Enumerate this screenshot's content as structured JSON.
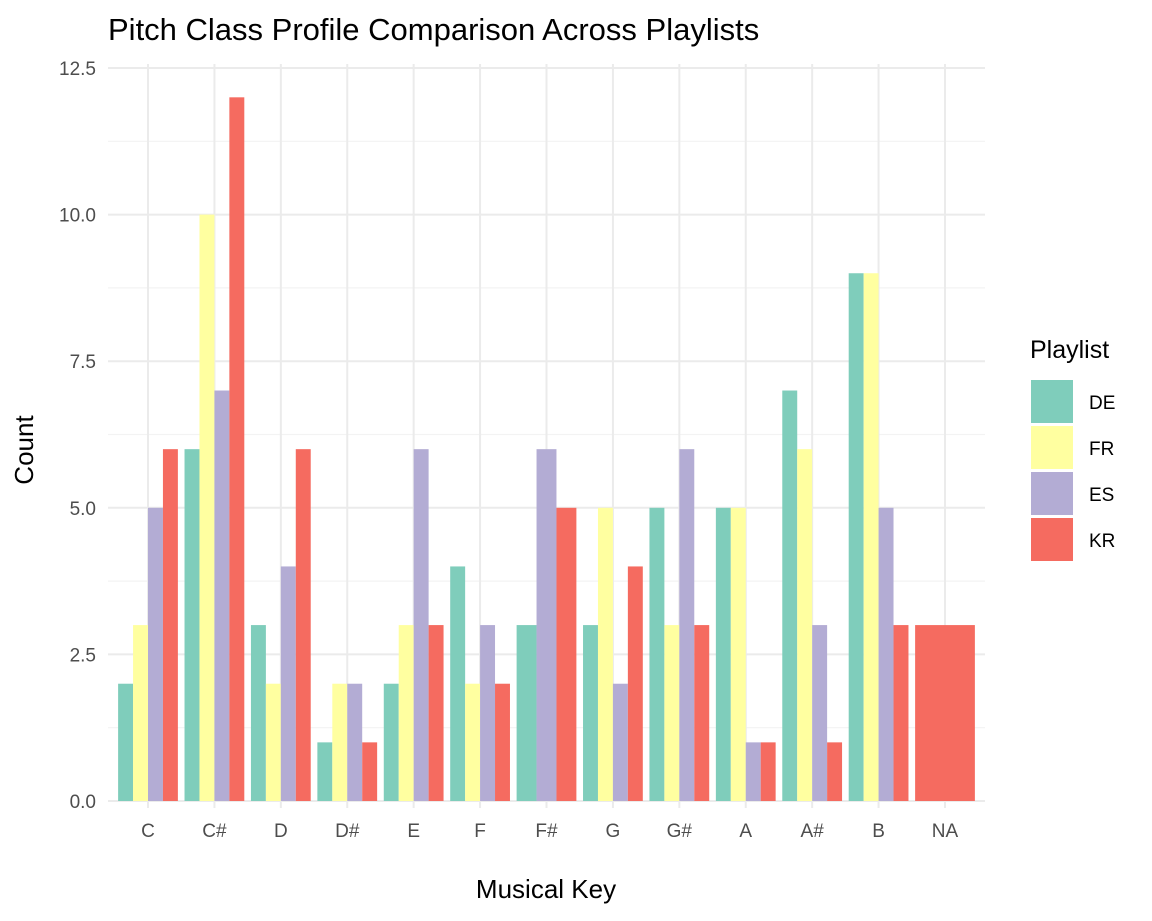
{
  "chart_data": {
    "type": "bar",
    "title": "Pitch Class Profile Comparison Across Playlists",
    "xlabel": "Musical Key",
    "ylabel": "Count",
    "ylim": [
      0,
      12.5
    ],
    "yticks": [
      "0.0",
      "2.5",
      "5.0",
      "7.5",
      "10.0",
      "12.5"
    ],
    "grid": true,
    "legend_position": "right",
    "legend_title": "Playlist",
    "categories": [
      "C",
      "C#",
      "D",
      "D#",
      "E",
      "F",
      "F#",
      "G",
      "G#",
      "A",
      "A#",
      "B",
      "NA"
    ],
    "series": [
      {
        "name": "DE",
        "color": "#7FCDBB",
        "values": [
          2,
          6,
          3,
          1,
          2,
          4,
          3,
          3,
          5,
          5,
          7,
          9,
          null
        ]
      },
      {
        "name": "FR",
        "color": "#FFFFA0",
        "values": [
          3,
          10,
          2,
          2,
          3,
          2,
          null,
          5,
          3,
          5,
          6,
          9,
          null
        ]
      },
      {
        "name": "ES",
        "color": "#B3ACD4",
        "values": [
          5,
          7,
          4,
          2,
          6,
          3,
          6,
          2,
          6,
          1,
          3,
          5,
          null
        ]
      },
      {
        "name": "KR",
        "color": "#F56B60",
        "values": [
          6,
          12,
          6,
          1,
          3,
          2,
          5,
          4,
          3,
          1,
          1,
          3,
          3
        ]
      }
    ]
  }
}
